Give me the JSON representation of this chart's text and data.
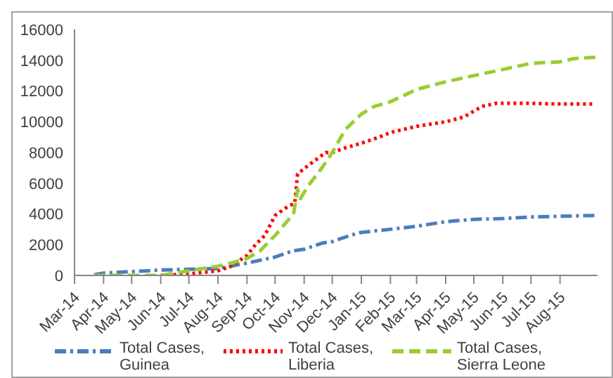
{
  "chart_data": {
    "type": "line",
    "xlim": [
      "2014-03-01",
      "2015-09-10"
    ],
    "xticks": [
      {
        "value": "2014-03-01",
        "label": "Mar-14"
      },
      {
        "value": "2014-04-01",
        "label": "Apr-14"
      },
      {
        "value": "2014-05-01",
        "label": "May-14"
      },
      {
        "value": "2014-06-01",
        "label": "Jun-14"
      },
      {
        "value": "2014-07-01",
        "label": "Jul-14"
      },
      {
        "value": "2014-08-01",
        "label": "Aug-14"
      },
      {
        "value": "2014-09-01",
        "label": "Sep-14"
      },
      {
        "value": "2014-10-01",
        "label": "Oct-14"
      },
      {
        "value": "2014-11-01",
        "label": "Nov-14"
      },
      {
        "value": "2014-12-01",
        "label": "Dec-14"
      },
      {
        "value": "2015-01-01",
        "label": "Jan-15"
      },
      {
        "value": "2015-02-01",
        "label": "Feb-15"
      },
      {
        "value": "2015-03-01",
        "label": "Mar-15"
      },
      {
        "value": "2015-04-01",
        "label": "Apr-15"
      },
      {
        "value": "2015-05-01",
        "label": "May-15"
      },
      {
        "value": "2015-06-01",
        "label": "Jun-15"
      },
      {
        "value": "2015-07-01",
        "label": "Jul-15"
      },
      {
        "value": "2015-08-01",
        "label": "Aug-15"
      }
    ],
    "ylim": [
      0,
      16000
    ],
    "yticks": [
      0,
      2000,
      4000,
      6000,
      8000,
      10000,
      12000,
      14000,
      16000
    ],
    "grid": false,
    "legend": "bottom",
    "marker": "none",
    "series": [
      {
        "name": "Total Cases, Guinea",
        "color": "#4a7ebb",
        "line_style": "dashdot",
        "x": [
          "2014-03-22",
          "2014-04-01",
          "2014-05-01",
          "2014-06-01",
          "2014-07-01",
          "2014-08-01",
          "2014-09-01",
          "2014-10-01",
          "2014-10-20",
          "2014-11-01",
          "2014-11-20",
          "2014-12-01",
          "2014-12-20",
          "2015-01-01",
          "2015-02-01",
          "2015-03-01",
          "2015-04-01",
          "2015-05-01",
          "2015-06-01",
          "2015-07-01",
          "2015-08-01",
          "2015-09-08"
        ],
        "values": [
          50,
          150,
          250,
          350,
          400,
          450,
          800,
          1200,
          1600,
          1700,
          2100,
          2200,
          2600,
          2800,
          3000,
          3200,
          3500,
          3650,
          3700,
          3800,
          3850,
          3900
        ]
      },
      {
        "name": "Total Cases, Liberia",
        "color": "#ff0000",
        "line_style": "dotted",
        "x": [
          "2014-06-01",
          "2014-07-01",
          "2014-08-01",
          "2014-08-15",
          "2014-09-01",
          "2014-09-10",
          "2014-09-20",
          "2014-10-01",
          "2014-10-15",
          "2014-10-22",
          "2014-10-25",
          "2014-11-02",
          "2014-11-24",
          "2014-12-01",
          "2014-12-15",
          "2015-01-01",
          "2015-01-20",
          "2015-02-01",
          "2015-03-01",
          "2015-04-01",
          "2015-04-20",
          "2015-05-10",
          "2015-05-25",
          "2015-06-01",
          "2015-07-01",
          "2015-08-01",
          "2015-09-08"
        ],
        "values": [
          0,
          100,
          300,
          600,
          1300,
          2000,
          2600,
          3900,
          4500,
          4700,
          6600,
          7000,
          8000,
          8000,
          8300,
          8600,
          9000,
          9300,
          9700,
          10000,
          10300,
          11000,
          11200,
          11200,
          11200,
          11150,
          11150
        ]
      },
      {
        "name": "Total Cases, Sierra Leone",
        "color": "#9acd32",
        "line_style": "dashed",
        "x": [
          "2014-03-22",
          "2014-06-01",
          "2014-07-01",
          "2014-08-01",
          "2014-08-15",
          "2014-09-01",
          "2014-09-15",
          "2014-10-01",
          "2014-10-15",
          "2014-10-21",
          "2014-10-25",
          "2014-10-28",
          "2014-11-05",
          "2014-11-20",
          "2014-12-01",
          "2014-12-15",
          "2015-01-01",
          "2015-01-15",
          "2015-02-01",
          "2015-03-01",
          "2015-04-01",
          "2015-05-01",
          "2015-06-01",
          "2015-07-01",
          "2015-08-01",
          "2015-08-15",
          "2015-09-08"
        ],
        "values": [
          0,
          0,
          300,
          600,
          800,
          1100,
          1600,
          2600,
          3600,
          4100,
          5600,
          5000,
          5800,
          7000,
          8000,
          9500,
          10500,
          11000,
          11300,
          12100,
          12600,
          13000,
          13400,
          13800,
          13900,
          14100,
          14200
        ]
      }
    ]
  }
}
